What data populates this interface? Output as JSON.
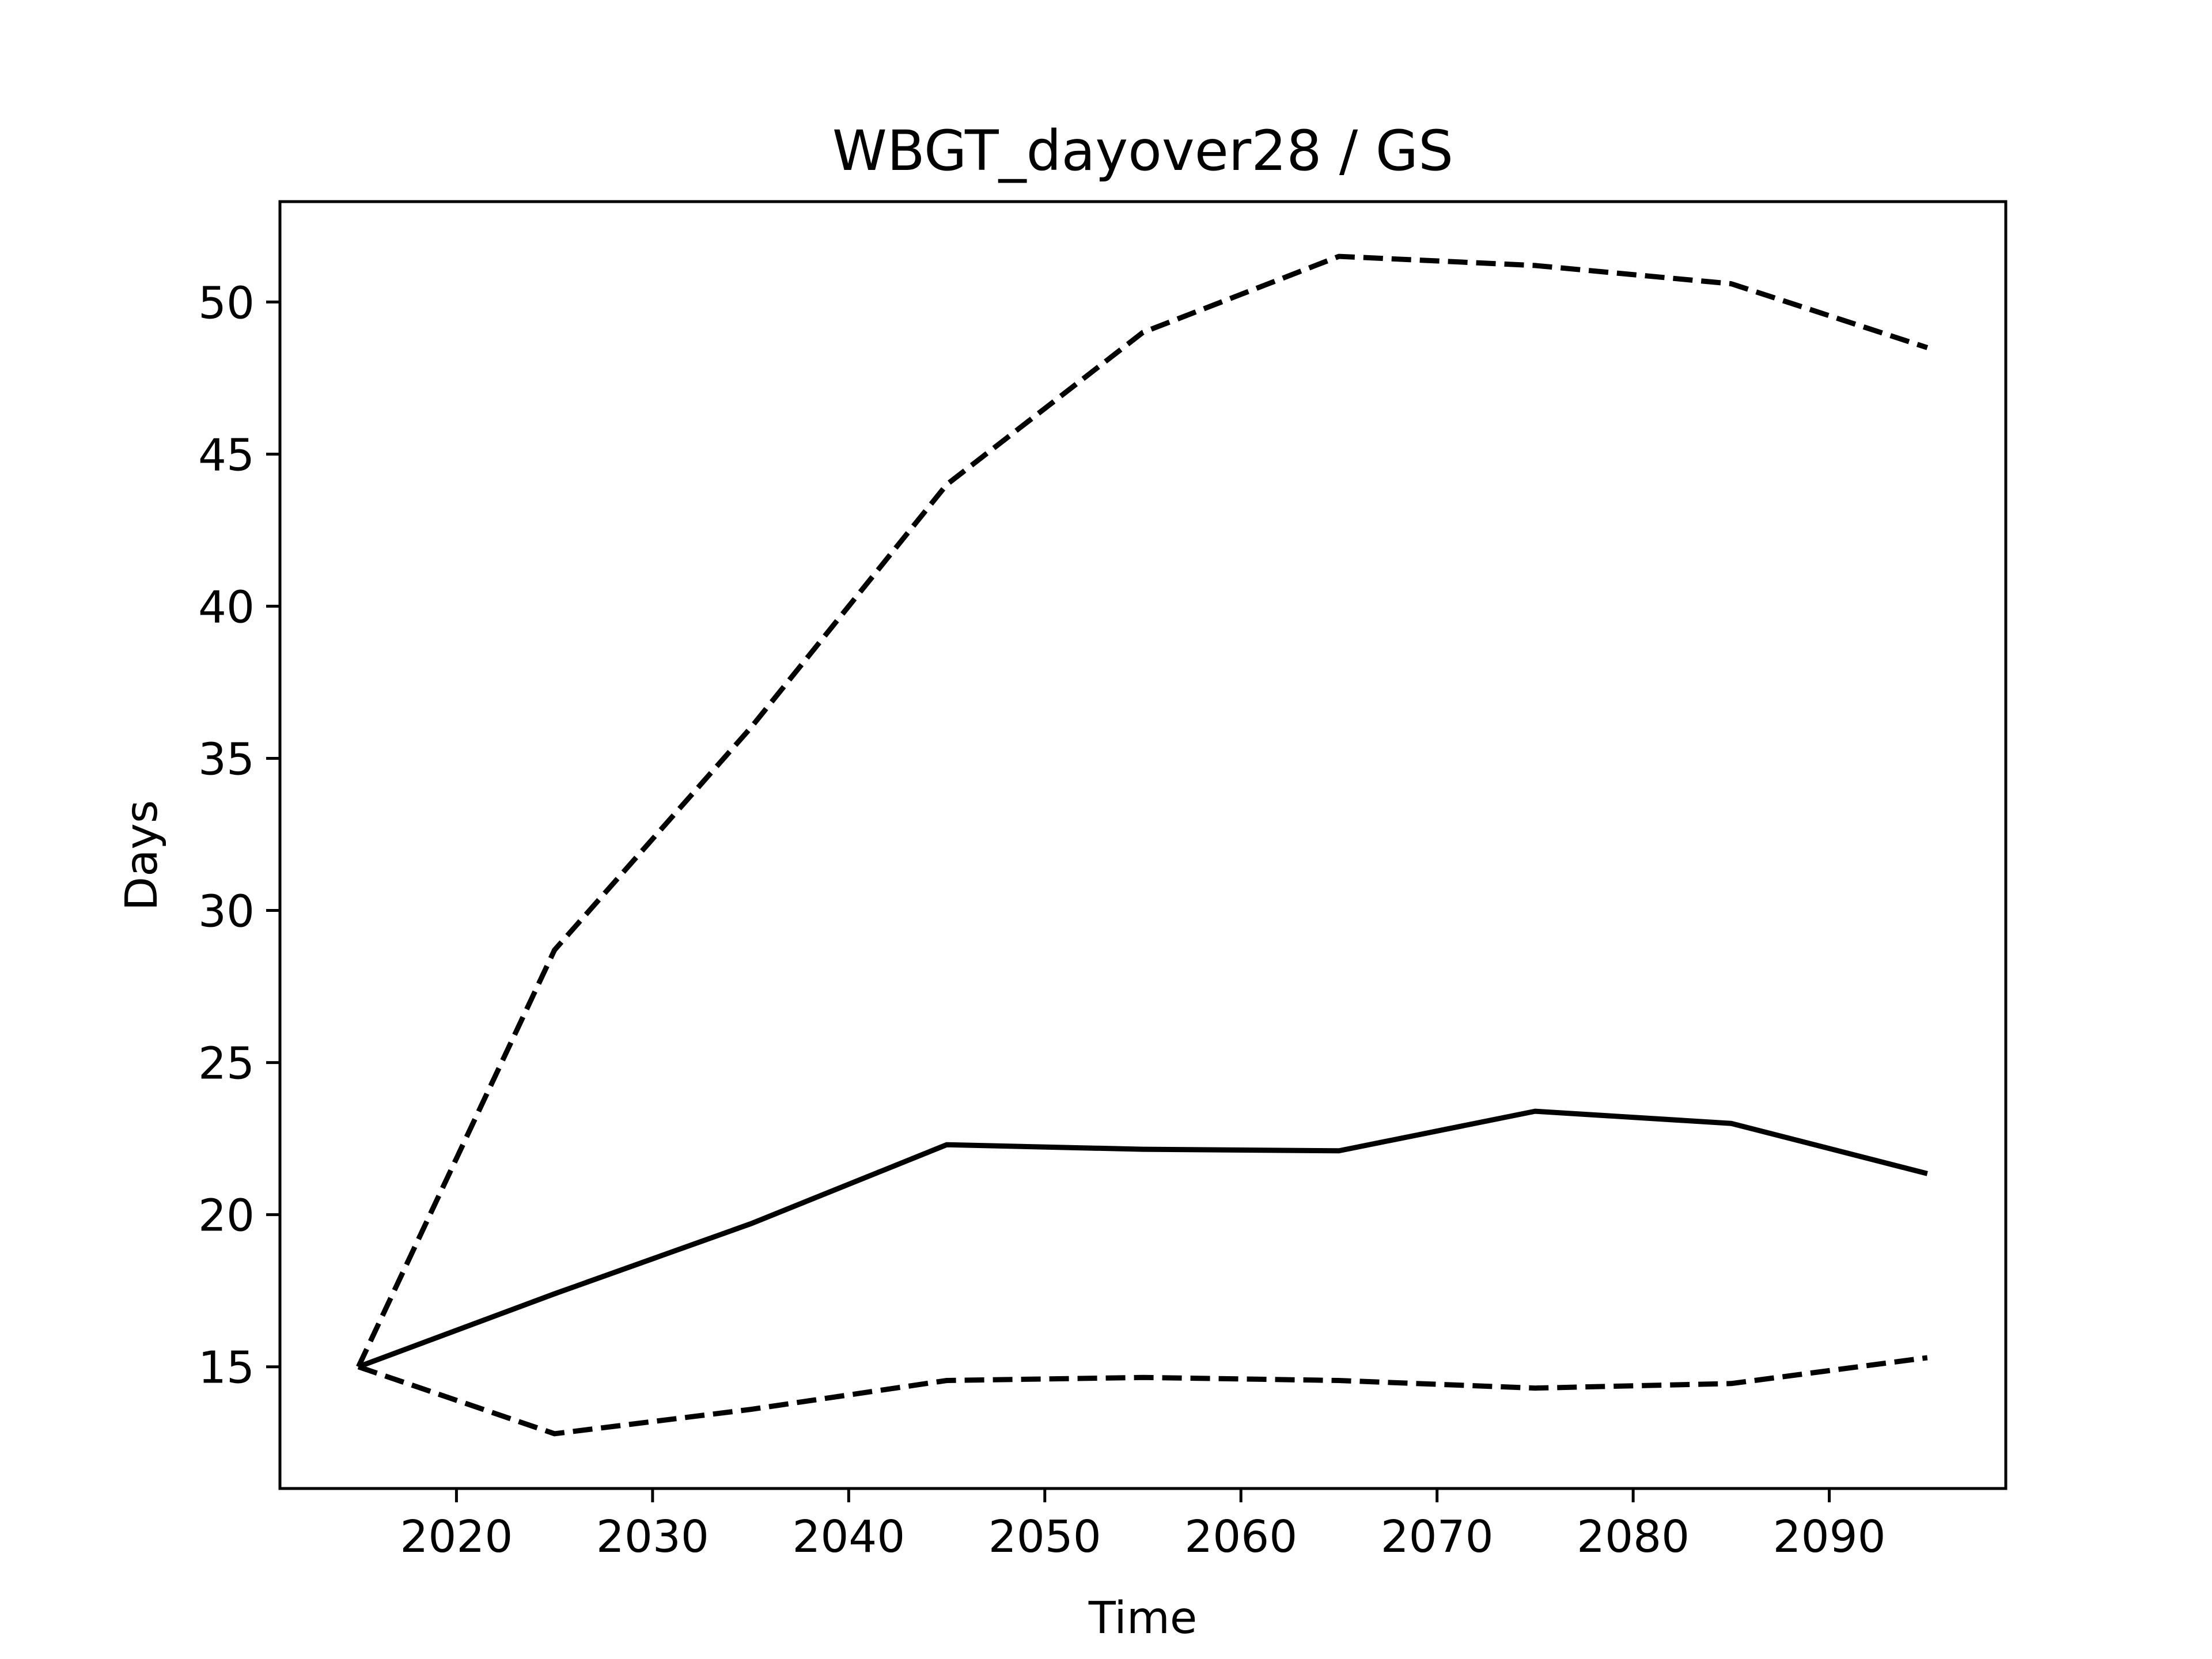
{
  "chart_data": {
    "type": "line",
    "title": "WBGT_dayover28 / GS",
    "xlabel": "Time",
    "ylabel": "Days",
    "xlim": [
      2011,
      2099
    ],
    "ylim": [
      11,
      53.3
    ],
    "xticks": [
      2020,
      2030,
      2040,
      2050,
      2060,
      2070,
      2080,
      2090
    ],
    "yticks": [
      15,
      20,
      25,
      30,
      35,
      40,
      45,
      50
    ],
    "grid": false,
    "legend": "none",
    "x": [
      2015,
      2025,
      2035,
      2045,
      2055,
      2065,
      2075,
      2085,
      2095
    ],
    "series": [
      {
        "style": "solid",
        "color": "#000000",
        "values": [
          15.0,
          17.4,
          19.7,
          22.3,
          22.15,
          22.1,
          23.4,
          23.0,
          21.35
        ]
      },
      {
        "style": "dashed",
        "color": "#000000",
        "values": [
          15.0,
          28.7,
          36.0,
          44.0,
          49.0,
          51.5,
          51.2,
          50.6,
          48.5
        ]
      },
      {
        "style": "dashed",
        "color": "#000000",
        "values": [
          15.0,
          12.8,
          13.6,
          14.55,
          14.65,
          14.55,
          14.3,
          14.45,
          15.3
        ]
      }
    ]
  }
}
